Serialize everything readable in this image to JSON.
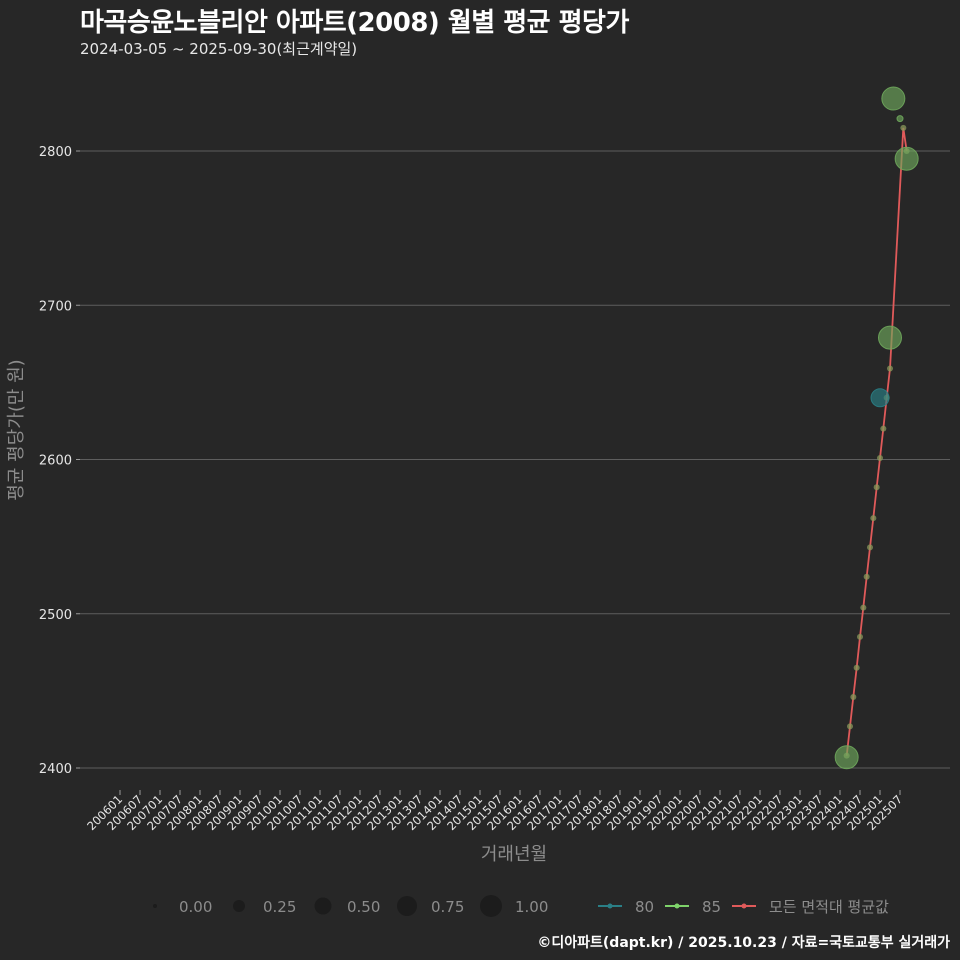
{
  "header": {
    "title": "마곡승윤노블리안 아파트(2008) 월별 평균 평당가",
    "subtitle": "2024-03-05 ~ 2025-09-30(최근계약일)"
  },
  "caption": "©디아파트(dapt.kr) / 2025.10.23 / 자료=국토교통부 실거래가",
  "chart_data": {
    "type": "scatter",
    "title": "마곡승윤노블리안 아파트(2008) 월별 평균 평당가",
    "subtitle": "2024-03-05 ~ 2025-09-30(최근계약일)",
    "xlabel": "거래년월",
    "ylabel": "평균 평당가(만 원)",
    "ylim": [
      2380,
      2850
    ],
    "yticks": [
      2400,
      2500,
      2600,
      2700,
      2800
    ],
    "xticks": [
      "200601",
      "200607",
      "200701",
      "200707",
      "200801",
      "200807",
      "200901",
      "200907",
      "201001",
      "201007",
      "201101",
      "201107",
      "201201",
      "201207",
      "201301",
      "201307",
      "201401",
      "201407",
      "201501",
      "201507",
      "201601",
      "201607",
      "201701",
      "201707",
      "201801",
      "201807",
      "201901",
      "201907",
      "202001",
      "202007",
      "202101",
      "202107",
      "202201",
      "202207",
      "202301",
      "202307",
      "202401",
      "202407",
      "202501",
      "202507"
    ],
    "grid": true,
    "legend_position": "bottom",
    "size_legend": [
      "0.00",
      "0.25",
      "0.50",
      "0.75",
      "1.00"
    ],
    "series": [
      {
        "name": "80",
        "color": "#2a7f86",
        "points": [
          {
            "x": "202501",
            "y": 2640,
            "size": 0.5
          }
        ]
      },
      {
        "name": "85",
        "color": "#6fa85c",
        "points": [
          {
            "x": "202403",
            "y": 2407,
            "size": 0.75
          },
          {
            "x": "202504",
            "y": 2679,
            "size": 0.75
          },
          {
            "x": "202505",
            "y": 2834,
            "size": 0.75
          },
          {
            "x": "202507",
            "y": 2821,
            "size": 0.0
          },
          {
            "x": "202509",
            "y": 2795,
            "size": 0.75
          }
        ]
      },
      {
        "name": "모든 면적대 평균값",
        "color": "#e05a5a",
        "line": [
          {
            "x": "202403",
            "y": 2408
          },
          {
            "x": "202404",
            "y": 2427
          },
          {
            "x": "202405",
            "y": 2446
          },
          {
            "x": "202406",
            "y": 2465
          },
          {
            "x": "202407",
            "y": 2485
          },
          {
            "x": "202408",
            "y": 2504
          },
          {
            "x": "202409",
            "y": 2524
          },
          {
            "x": "202410",
            "y": 2543
          },
          {
            "x": "202411",
            "y": 2562
          },
          {
            "x": "202412",
            "y": 2582
          },
          {
            "x": "202501",
            "y": 2601
          },
          {
            "x": "202502",
            "y": 2620
          },
          {
            "x": "202503",
            "y": 2640
          },
          {
            "x": "202504",
            "y": 2659
          },
          {
            "x": "202508",
            "y": 2815
          },
          {
            "x": "202509",
            "y": 2800
          }
        ]
      }
    ]
  },
  "legend": {
    "sizes": [
      {
        "label": "0.00",
        "r": 2
      },
      {
        "label": "0.25",
        "r": 6
      },
      {
        "label": "0.50",
        "r": 8.5
      },
      {
        "label": "0.75",
        "r": 10
      },
      {
        "label": "1.00",
        "r": 11
      }
    ],
    "lines": [
      {
        "label": "80",
        "color": "#2a7f86"
      },
      {
        "label": "85",
        "color": "#7ed36a"
      },
      {
        "label": "모든 면적대 평균값",
        "color": "#e05a5a"
      }
    ]
  }
}
